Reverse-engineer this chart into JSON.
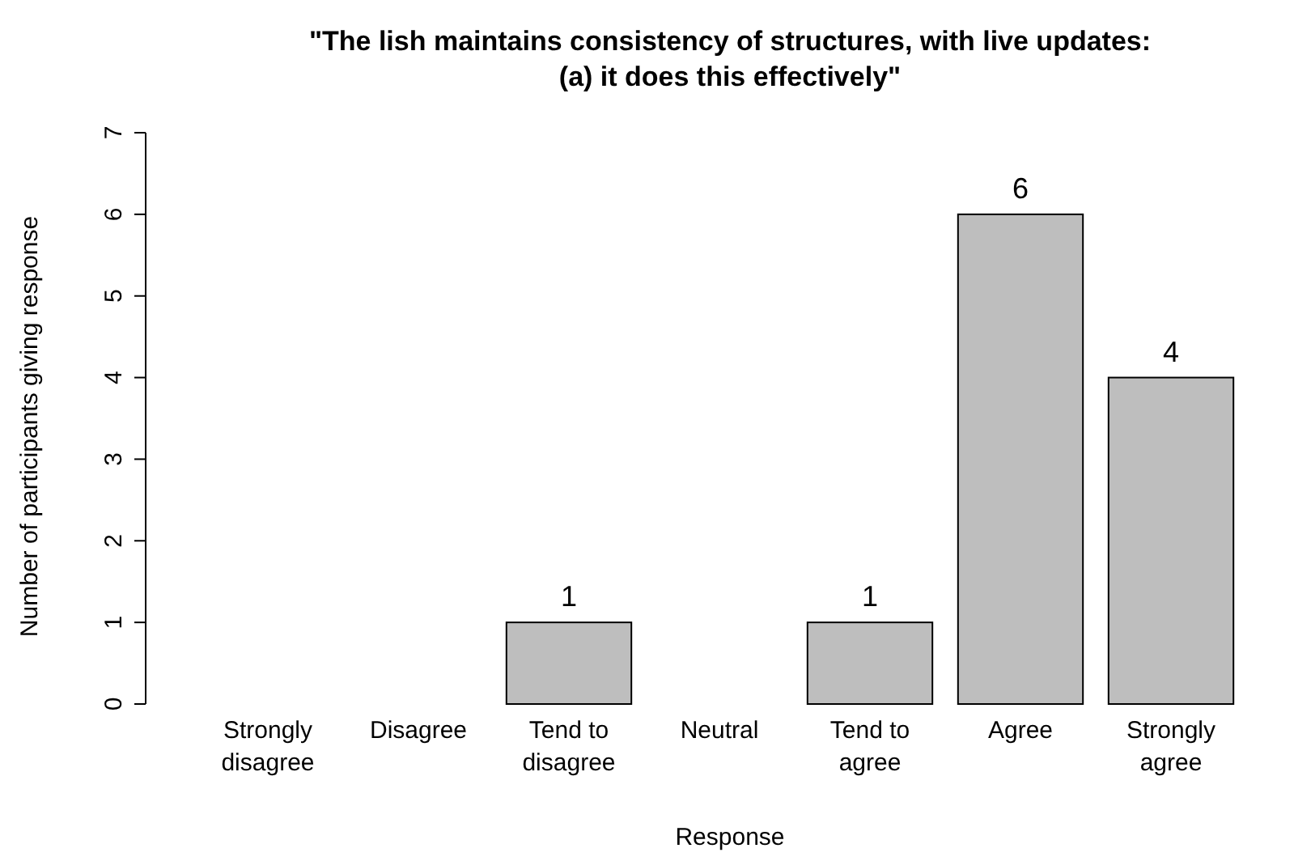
{
  "chart_data": {
    "type": "bar",
    "title": "\"The lish maintains consistency of structures, with live updates:\n(a) it does this effectively\"",
    "xlabel": "Response",
    "ylabel": "Number of participants giving response",
    "categories": [
      "Strongly\ndisagree",
      "Disagree",
      "Tend to\ndisagree",
      "Neutral",
      "Tend to\nagree",
      "Agree",
      "Strongly\nagree"
    ],
    "values": [
      0,
      0,
      1,
      0,
      1,
      6,
      4
    ],
    "value_labels": [
      null,
      null,
      "1",
      null,
      "1",
      "6",
      "4"
    ],
    "color": "#bebebe",
    "ylim": [
      0,
      7
    ],
    "yticks": [
      0,
      1,
      2,
      3,
      4,
      5,
      6,
      7
    ],
    "grid": false
  }
}
